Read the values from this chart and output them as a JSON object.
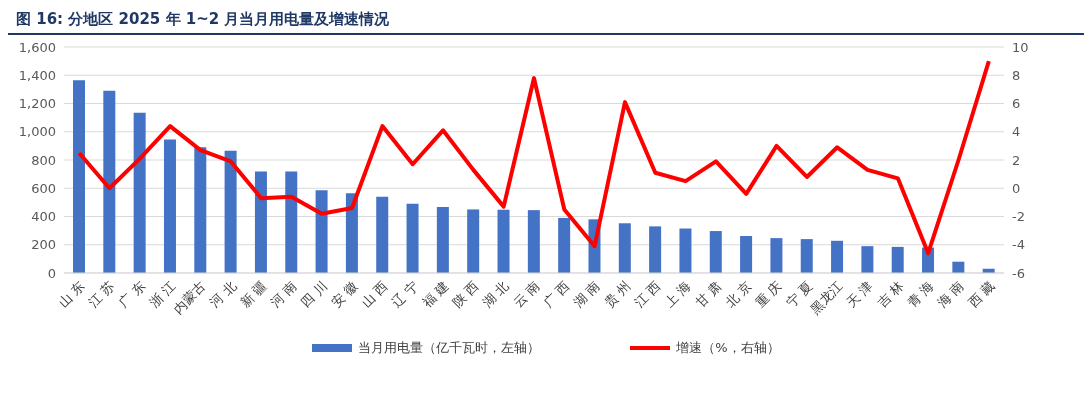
{
  "chart_data": {
    "type": "bar",
    "title": "图 16:  分地区 2025 年 1~2 月当月用电量及增速情况",
    "categories": [
      "山 东",
      "江 苏",
      "广 东",
      "浙 江",
      "内蒙古",
      "河 北",
      "新 疆",
      "河 南",
      "四 川",
      "安 徽",
      "山 西",
      "辽 宁",
      "福 建",
      "陕 西",
      "湖 北",
      "云 南",
      "广 西",
      "湖 南",
      "贵 州",
      "江 西",
      "上 海",
      "甘 肃",
      "北 京",
      "重 庆",
      "宁 夏",
      "黑龙江",
      "天 津",
      "吉 林",
      "青 海",
      "海 南",
      "西 藏"
    ],
    "series": [
      {
        "name": "当月用电量（亿千瓦时，左轴）",
        "color": "#4472c4",
        "values": [
          1365,
          1290,
          1135,
          945,
          890,
          865,
          718,
          718,
          585,
          565,
          540,
          490,
          468,
          450,
          448,
          445,
          390,
          380,
          352,
          330,
          315,
          297,
          262,
          247,
          240,
          228,
          190,
          185,
          180,
          80,
          30
        ]
      },
      {
        "name": "增速（%，右轴）",
        "type": "line",
        "axis": "y2",
        "color": "#ff0000",
        "values": [
          2.5,
          0.0,
          2.1,
          4.4,
          2.7,
          1.9,
          -0.7,
          -0.6,
          -1.8,
          -1.4,
          4.4,
          1.7,
          4.1,
          1.3,
          -1.3,
          7.8,
          -1.5,
          -4.1,
          6.1,
          1.1,
          0.5,
          1.9,
          -0.4,
          3.0,
          0.8,
          2.9,
          1.3,
          0.7,
          -4.6,
          2.0,
          9.0
        ]
      }
    ],
    "ylim": [
      0,
      1600
    ],
    "yticks": [
      {
        "value": 0,
        "label": "0"
      },
      {
        "value": 200,
        "label": "200"
      },
      {
        "value": 400,
        "label": "400"
      },
      {
        "value": 600,
        "label": "600"
      },
      {
        "value": 800,
        "label": "800"
      },
      {
        "value": 1000,
        "label": "1,000"
      },
      {
        "value": 1200,
        "label": "1,200"
      },
      {
        "value": 1400,
        "label": "1,400"
      },
      {
        "value": 1600,
        "label": "1,600"
      }
    ],
    "y2lim": [
      -6,
      10
    ],
    "y2ticks": [
      -6,
      -4,
      -2,
      0,
      2,
      4,
      6,
      8,
      10
    ],
    "grid": "y",
    "legend": "bottom",
    "marker": "none",
    "line_style": "solid"
  }
}
